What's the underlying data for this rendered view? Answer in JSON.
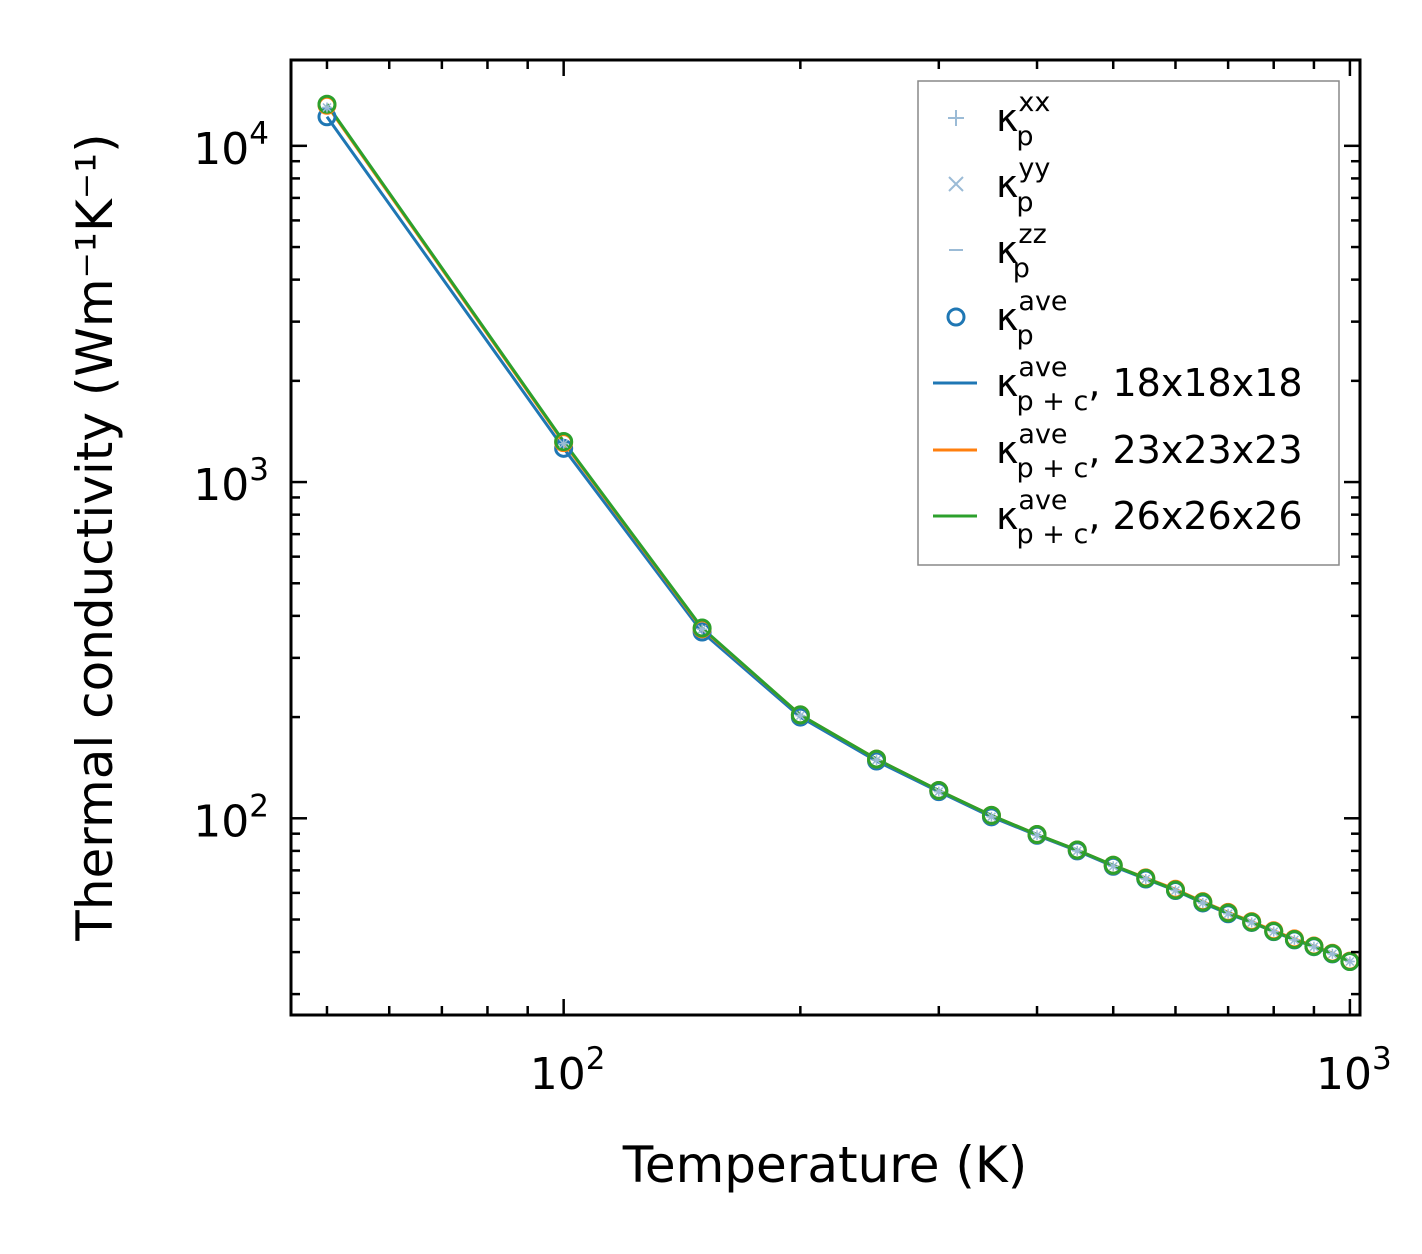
{
  "chart_data": {
    "type": "line",
    "xscale": "log",
    "yscale": "log",
    "xlabel": "Temperature (K)",
    "ylabel": "Thermal conductivity (Wm⁻¹K⁻¹)",
    "xlim": [
      45,
      1030
    ],
    "ylim": [
      26,
      18000
    ],
    "x_ticks": [
      {
        "base": "10",
        "exp": "2",
        "value": 100
      },
      {
        "base": "10",
        "exp": "3",
        "value": 1000
      }
    ],
    "y_ticks": [
      {
        "base": "10",
        "exp": "2",
        "value": 100
      },
      {
        "base": "10",
        "exp": "3",
        "value": 1000
      },
      {
        "base": "10",
        "exp": "4",
        "value": 10000
      }
    ],
    "x": [
      50,
      100,
      150,
      200,
      250,
      300,
      350,
      400,
      450,
      500,
      550,
      600,
      650,
      700,
      750,
      800,
      850,
      900,
      950,
      1000
    ],
    "series": [
      {
        "name": "κp^xx",
        "kind": "marker",
        "marker": "+",
        "color": "#9bbbd6",
        "values": [
          13000,
          1300,
          365,
          202,
          149,
          120,
          101,
          89,
          80,
          72,
          66,
          61,
          56,
          52,
          49,
          46,
          43.5,
          41.5,
          39.5,
          37.5
        ]
      },
      {
        "name": "κp^yy",
        "kind": "marker",
        "marker": "x",
        "color": "#9bbbd6",
        "values": [
          13000,
          1300,
          365,
          202,
          149,
          120,
          101,
          89,
          80,
          72,
          66,
          61,
          56,
          52,
          49,
          46,
          43.5,
          41.5,
          39.5,
          37.5
        ]
      },
      {
        "name": "κp^zz",
        "kind": "marker",
        "marker": "_",
        "color": "#9bbbd6",
        "values": [
          13000,
          1300,
          365,
          202,
          149,
          120,
          101,
          89,
          80,
          72,
          66,
          61,
          56,
          52,
          49,
          46,
          43.5,
          41.5,
          39.5,
          37.5
        ]
      },
      {
        "name": "κp^ave",
        "kind": "marker",
        "marker": "o",
        "color": "#1f77b4",
        "values": [
          12200,
          1260,
          358,
          200,
          148,
          120,
          101,
          89,
          80,
          72,
          66,
          61,
          56,
          52,
          49,
          46,
          43.5,
          41.5,
          39.5,
          37.5
        ]
      },
      {
        "name": "κp+c^ave, 18x18x18",
        "kind": "line",
        "color": "#1f77b4",
        "values": [
          12200,
          1260,
          358,
          200,
          148,
          120,
          101,
          89,
          80,
          72,
          66,
          61,
          56,
          52,
          49,
          46,
          43.5,
          41.5,
          39.5,
          37.5
        ]
      },
      {
        "name": "κp+c^ave, 23x23x23",
        "kind": "line",
        "color": "#ff7f0e",
        "values": [
          13200,
          1310,
          366,
          203,
          150,
          121,
          102,
          89.5,
          80.5,
          72.5,
          66.5,
          61.5,
          56.5,
          52.5,
          49.3,
          46.3,
          43.8,
          41.7,
          39.7,
          37.6
        ]
      },
      {
        "name": "κp+c^ave, 26x26x26",
        "kind": "line",
        "color": "#2ca02c",
        "values": [
          13300,
          1320,
          368,
          203,
          150,
          121,
          102,
          89.5,
          80.5,
          72.5,
          66.3,
          61.2,
          56.3,
          52.3,
          49.1,
          46.1,
          43.6,
          41.6,
          39.6,
          37.5
        ]
      }
    ],
    "legend": {
      "position": "top-right",
      "entries": [
        {
          "sym": "κ",
          "sub": "p",
          "sup": "xx",
          "suffix": "",
          "marker": "+",
          "color": "#9bbbd6"
        },
        {
          "sym": "κ",
          "sub": "p",
          "sup": "yy",
          "suffix": "",
          "marker": "x",
          "color": "#9bbbd6"
        },
        {
          "sym": "κ",
          "sub": "p",
          "sup": "zz",
          "suffix": "",
          "marker": "_",
          "color": "#9bbbd6"
        },
        {
          "sym": "κ",
          "sub": "p",
          "sup": "ave",
          "suffix": "",
          "marker": "o",
          "color": "#1f77b4"
        },
        {
          "sym": "κ",
          "sub": "p + c",
          "sup": "ave",
          "suffix": ", 18x18x18",
          "marker": "line",
          "color": "#1f77b4"
        },
        {
          "sym": "κ",
          "sub": "p + c",
          "sup": "ave",
          "suffix": ", 23x23x23",
          "marker": "line",
          "color": "#ff7f0e"
        },
        {
          "sym": "κ",
          "sub": "p + c",
          "sup": "ave",
          "suffix": ", 26x26x26",
          "marker": "line",
          "color": "#2ca02c"
        }
      ]
    }
  }
}
